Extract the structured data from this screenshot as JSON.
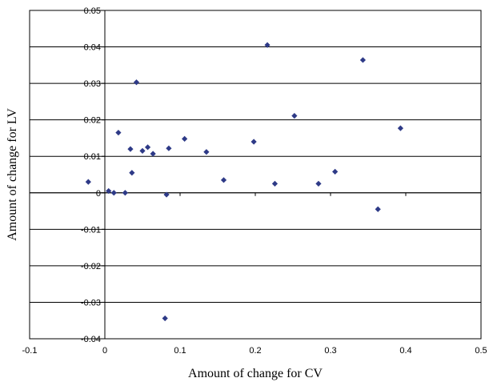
{
  "chart_data": {
    "type": "scatter",
    "xlabel": "Amount of change for CV",
    "ylabel": "Amount of change for LV",
    "xlim": [
      -0.1,
      0.5
    ],
    "ylim": [
      -0.04,
      0.05
    ],
    "xticks": [
      -0.1,
      0,
      0.1,
      0.2,
      0.3,
      0.4,
      0.5
    ],
    "xtick_labels": [
      "-0.1",
      "0",
      "0.1",
      "0.2",
      "0.3",
      "0.4",
      "0.5"
    ],
    "yticks": [
      -0.04,
      -0.03,
      -0.02,
      -0.01,
      0,
      0.01,
      0.02,
      0.03,
      0.04,
      0.05
    ],
    "ytick_labels": [
      "-0.04",
      "-0.03",
      "-0.02",
      "-0.01",
      "0",
      "0.01",
      "0.02",
      "0.03",
      "0.04",
      "0.05"
    ],
    "grid": "horizontal",
    "marker": "diamond",
    "marker_color": "#2e3a87",
    "points": [
      {
        "x": -0.022,
        "y": 0.003
      },
      {
        "x": 0.005,
        "y": 0.0005
      },
      {
        "x": 0.012,
        "y": 0.0
      },
      {
        "x": 0.027,
        "y": 0.0
      },
      {
        "x": 0.018,
        "y": 0.0165
      },
      {
        "x": 0.034,
        "y": 0.012
      },
      {
        "x": 0.036,
        "y": 0.0055
      },
      {
        "x": 0.042,
        "y": 0.0303
      },
      {
        "x": 0.05,
        "y": 0.0115
      },
      {
        "x": 0.057,
        "y": 0.0125
      },
      {
        "x": 0.064,
        "y": 0.0107
      },
      {
        "x": 0.082,
        "y": -0.0005
      },
      {
        "x": 0.085,
        "y": 0.0122
      },
      {
        "x": 0.08,
        "y": -0.0344
      },
      {
        "x": 0.106,
        "y": 0.0148
      },
      {
        "x": 0.135,
        "y": 0.0112
      },
      {
        "x": 0.158,
        "y": 0.0035
      },
      {
        "x": 0.198,
        "y": 0.014
      },
      {
        "x": 0.216,
        "y": 0.0405
      },
      {
        "x": 0.226,
        "y": 0.0025
      },
      {
        "x": 0.252,
        "y": 0.0211
      },
      {
        "x": 0.284,
        "y": 0.0025
      },
      {
        "x": 0.306,
        "y": 0.0058
      },
      {
        "x": 0.343,
        "y": 0.0364
      },
      {
        "x": 0.363,
        "y": -0.0045
      },
      {
        "x": 0.393,
        "y": 0.0177
      }
    ]
  }
}
